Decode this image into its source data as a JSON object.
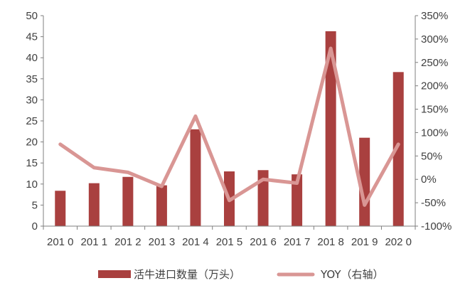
{
  "chart_data": {
    "type": "bar",
    "categories": [
      "2010",
      "2011",
      "2012",
      "2013",
      "2014",
      "2015",
      "2016",
      "2017",
      "2018",
      "2019",
      "2020"
    ],
    "series": [
      {
        "name": "活牛进口数量（万头）",
        "type": "bar",
        "axis": "left",
        "color": "#a9403f",
        "values": [
          8.4,
          10.2,
          11.7,
          9.7,
          23.0,
          13.0,
          13.3,
          12.3,
          46.3,
          21.0,
          36.6
        ]
      },
      {
        "name": "YOY（右轴）",
        "type": "line",
        "axis": "right",
        "color": "#d99694",
        "values": [
          75,
          25,
          15,
          -15,
          135,
          -45,
          0,
          -8,
          280,
          -55,
          75
        ]
      }
    ],
    "y_left": {
      "min": 0,
      "max": 50,
      "step": 5,
      "tick_labels": [
        "0",
        "5",
        "10",
        "15",
        "20",
        "25",
        "30",
        "35",
        "40",
        "45",
        "50"
      ]
    },
    "y_right": {
      "min": -100,
      "max": 350,
      "step": 50,
      "tick_labels": [
        "-100%",
        "-50%",
        "0%",
        "50%",
        "100%",
        "150%",
        "200%",
        "250%",
        "300%",
        "350%"
      ]
    },
    "x_tick_labels": [
      "201 0",
      "201 1",
      "201 2",
      "201 3",
      "201 4",
      "201 5",
      "201 6",
      "201 7",
      "201 8",
      "201 9",
      "202 0"
    ],
    "grid": false,
    "legend_position": "bottom"
  }
}
